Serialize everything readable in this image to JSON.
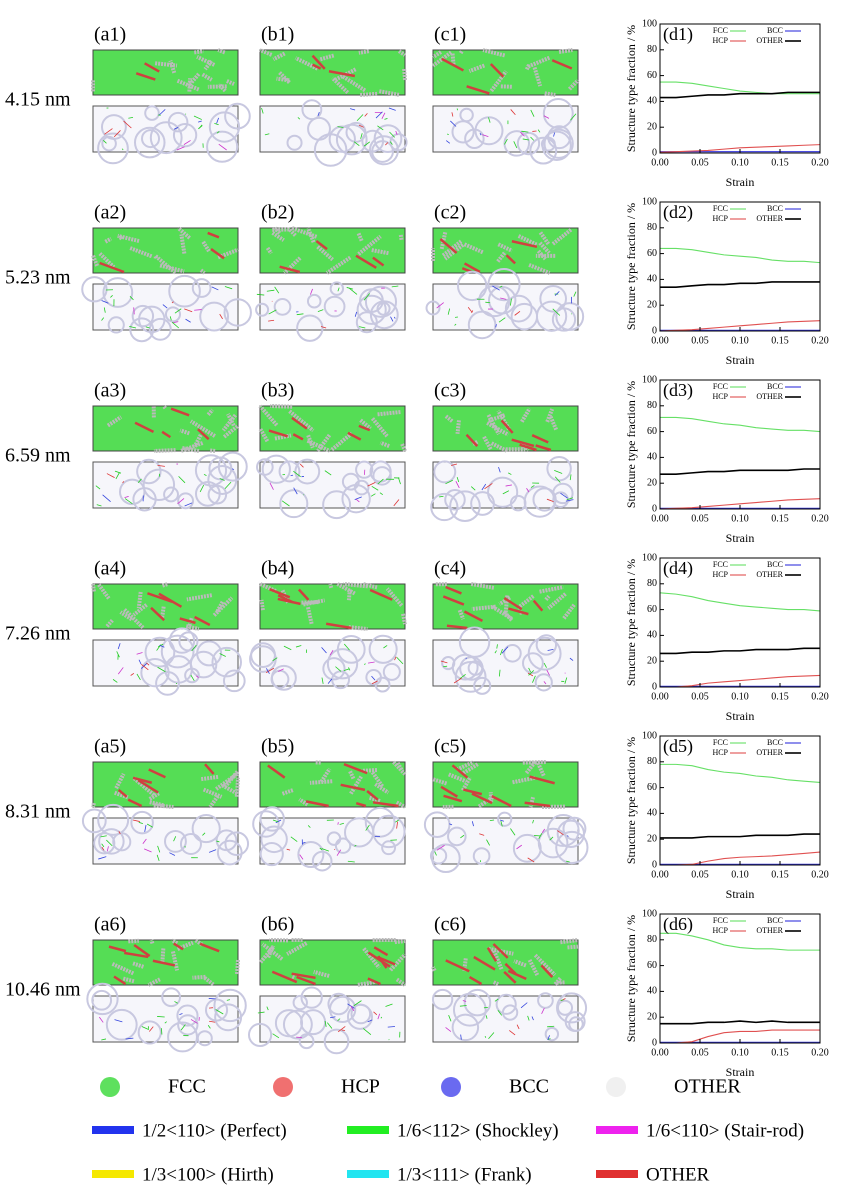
{
  "chart_data": [
    {
      "type": "line",
      "panel_label": "(d1)",
      "xlabel": "Strain",
      "ylabel": "Structure type fraction / %",
      "x": [
        0,
        0.02,
        0.04,
        0.06,
        0.08,
        0.1,
        0.12,
        0.14,
        0.16,
        0.18,
        0.2
      ],
      "series": [
        {
          "name": "FCC",
          "color": "#66e066",
          "values": [
            55,
            55,
            54,
            52,
            50,
            48,
            47,
            46,
            46,
            46,
            46
          ]
        },
        {
          "name": "BCC",
          "color": "#3333dd",
          "values": [
            1,
            1,
            1,
            1,
            1,
            1,
            1,
            1,
            1,
            1,
            1
          ]
        },
        {
          "name": "HCP",
          "color": "#e05050",
          "values": [
            0.5,
            1,
            1.5,
            2,
            3,
            4,
            4.5,
            5,
            5.5,
            6,
            6.5
          ]
        },
        {
          "name": "OTHER",
          "color": "#000000",
          "values": [
            43,
            43,
            44,
            45,
            45,
            46,
            46,
            46,
            47,
            47,
            47
          ]
        }
      ],
      "xlim": [
        0,
        0.2
      ],
      "ylim": [
        0,
        100
      ],
      "xticks": [
        {
          "value": 0,
          "label": "0.00"
        },
        {
          "value": 0.05,
          "label": "0.05"
        },
        {
          "value": 0.1,
          "label": "0.10"
        },
        {
          "value": 0.15,
          "label": "0.15"
        },
        {
          "value": 0.2,
          "label": "0.20"
        }
      ],
      "yticks": [
        0,
        20,
        40,
        60,
        80,
        100
      ]
    },
    {
      "type": "line",
      "panel_label": "(d2)",
      "xlabel": "Strain",
      "ylabel": "Structure type fraction / %",
      "x": [
        0,
        0.02,
        0.04,
        0.06,
        0.08,
        0.1,
        0.12,
        0.14,
        0.16,
        0.18,
        0.2
      ],
      "series": [
        {
          "name": "FCC",
          "color": "#66e066",
          "values": [
            64,
            64,
            63,
            61,
            59,
            58,
            57,
            55,
            54,
            54,
            53
          ]
        },
        {
          "name": "BCC",
          "color": "#3333dd",
          "values": [
            0.5,
            0.5,
            0.5,
            0.5,
            0.5,
            0.5,
            0.5,
            0.5,
            0.5,
            0.5,
            0.5
          ]
        },
        {
          "name": "HCP",
          "color": "#e05050",
          "values": [
            0,
            0.5,
            1,
            2,
            3,
            4,
            5,
            6,
            7,
            7.5,
            8
          ]
        },
        {
          "name": "OTHER",
          "color": "#000000",
          "values": [
            34,
            34,
            35,
            36,
            36,
            37,
            37,
            38,
            38,
            38,
            38
          ]
        }
      ],
      "xlim": [
        0,
        0.2
      ],
      "ylim": [
        0,
        100
      ],
      "xticks": [
        {
          "value": 0,
          "label": "0.00"
        },
        {
          "value": 0.05,
          "label": "0.05"
        },
        {
          "value": 0.1,
          "label": "0.10"
        },
        {
          "value": 0.15,
          "label": "0.15"
        },
        {
          "value": 0.2,
          "label": "0.20"
        }
      ],
      "yticks": [
        0,
        20,
        40,
        60,
        80,
        100
      ]
    },
    {
      "type": "line",
      "panel_label": "(d3)",
      "xlabel": "Strain",
      "ylabel": "Structure type fraction / %",
      "x": [
        0,
        0.02,
        0.04,
        0.06,
        0.08,
        0.1,
        0.12,
        0.14,
        0.16,
        0.18,
        0.2
      ],
      "series": [
        {
          "name": "FCC",
          "color": "#66e066",
          "values": [
            71,
            71,
            70,
            68,
            66,
            65,
            63,
            62,
            61,
            61,
            60
          ]
        },
        {
          "name": "BCC",
          "color": "#3333dd",
          "values": [
            0.5,
            0.5,
            0.5,
            0.5,
            0.5,
            0.5,
            0.5,
            0.5,
            0.5,
            0.5,
            0.5
          ]
        },
        {
          "name": "HCP",
          "color": "#e05050",
          "values": [
            0,
            0.5,
            1,
            2,
            3,
            4,
            5,
            6,
            7,
            7.5,
            8
          ]
        },
        {
          "name": "OTHER",
          "color": "#000000",
          "values": [
            27,
            27,
            28,
            29,
            29,
            30,
            30,
            30,
            30,
            31,
            31
          ]
        }
      ],
      "xlim": [
        0,
        0.2
      ],
      "ylim": [
        0,
        100
      ],
      "xticks": [
        {
          "value": 0,
          "label": "0.00"
        },
        {
          "value": 0.05,
          "label": "0.05"
        },
        {
          "value": 0.1,
          "label": "0.10"
        },
        {
          "value": 0.15,
          "label": "0.15"
        },
        {
          "value": 0.2,
          "label": "0.20"
        }
      ],
      "yticks": [
        0,
        20,
        40,
        60,
        80,
        100
      ]
    },
    {
      "type": "line",
      "panel_label": "(d4)",
      "xlabel": "Strain",
      "ylabel": "Structure type fraction / %",
      "x": [
        0,
        0.02,
        0.04,
        0.06,
        0.08,
        0.1,
        0.12,
        0.14,
        0.16,
        0.18,
        0.2
      ],
      "series": [
        {
          "name": "FCC",
          "color": "#66e066",
          "values": [
            73,
            72,
            70,
            67,
            65,
            63,
            62,
            61,
            60,
            60,
            59
          ]
        },
        {
          "name": "BCC",
          "color": "#3333dd",
          "values": [
            0.5,
            0.5,
            0.5,
            0.5,
            0.5,
            0.5,
            0.5,
            0.5,
            0.5,
            0.5,
            0.5
          ]
        },
        {
          "name": "HCP",
          "color": "#e05050",
          "values": [
            0,
            0,
            1,
            3,
            4,
            5,
            6,
            7,
            8,
            8.5,
            9
          ]
        },
        {
          "name": "OTHER",
          "color": "#000000",
          "values": [
            26,
            26,
            27,
            27,
            28,
            28,
            29,
            29,
            29,
            30,
            30
          ]
        }
      ],
      "xlim": [
        0,
        0.2
      ],
      "ylim": [
        0,
        100
      ],
      "xticks": [
        {
          "value": 0,
          "label": "0.00"
        },
        {
          "value": 0.05,
          "label": "0.05"
        },
        {
          "value": 0.1,
          "label": "0.10"
        },
        {
          "value": 0.15,
          "label": "0.15"
        },
        {
          "value": 0.2,
          "label": "0.20"
        }
      ],
      "yticks": [
        0,
        20,
        40,
        60,
        80,
        100
      ]
    },
    {
      "type": "line",
      "panel_label": "(d5)",
      "xlabel": "Strain",
      "ylabel": "Structure type fraction / %",
      "x": [
        0,
        0.02,
        0.04,
        0.06,
        0.08,
        0.1,
        0.12,
        0.14,
        0.16,
        0.18,
        0.2
      ],
      "series": [
        {
          "name": "FCC",
          "color": "#66e066",
          "values": [
            78,
            78,
            77,
            74,
            72,
            71,
            69,
            68,
            66,
            65,
            64
          ]
        },
        {
          "name": "BCC",
          "color": "#3333dd",
          "values": [
            0.5,
            0.5,
            0.5,
            0.5,
            0.5,
            0.5,
            0.5,
            0.5,
            0.5,
            0.5,
            0.5
          ]
        },
        {
          "name": "HCP",
          "color": "#e05050",
          "values": [
            0,
            0,
            0.5,
            3,
            5,
            6,
            6.5,
            7,
            8,
            9,
            10
          ]
        },
        {
          "name": "OTHER",
          "color": "#000000",
          "values": [
            21,
            21,
            21,
            22,
            22,
            22,
            23,
            23,
            23,
            24,
            24
          ]
        }
      ],
      "xlim": [
        0,
        0.2
      ],
      "ylim": [
        0,
        100
      ],
      "xticks": [
        {
          "value": 0,
          "label": "0.00"
        },
        {
          "value": 0.05,
          "label": "0.05"
        },
        {
          "value": 0.1,
          "label": "0.10"
        },
        {
          "value": 0.15,
          "label": "0.15"
        },
        {
          "value": 0.2,
          "label": "0.20"
        }
      ],
      "yticks": [
        0,
        20,
        40,
        60,
        80,
        100
      ]
    },
    {
      "type": "line",
      "panel_label": "(d6)",
      "xlabel": "Strain",
      "ylabel": "Structure type fraction / %",
      "x": [
        0,
        0.02,
        0.04,
        0.06,
        0.08,
        0.1,
        0.12,
        0.14,
        0.16,
        0.18,
        0.2
      ],
      "series": [
        {
          "name": "FCC",
          "color": "#66e066",
          "values": [
            85,
            85,
            83,
            80,
            76,
            74,
            73,
            73,
            72,
            72,
            72
          ]
        },
        {
          "name": "BCC",
          "color": "#3333dd",
          "values": [
            0.5,
            0.5,
            0.5,
            0.5,
            0.5,
            0.5,
            0.5,
            0.5,
            0.5,
            0.5,
            0.5
          ]
        },
        {
          "name": "HCP",
          "color": "#e05050",
          "values": [
            0,
            0,
            1,
            5,
            8,
            9,
            9,
            10,
            10,
            10,
            10
          ]
        },
        {
          "name": "OTHER",
          "color": "#000000",
          "values": [
            15,
            15,
            15,
            16,
            16,
            17,
            16,
            17,
            16,
            16,
            16
          ]
        }
      ],
      "xlim": [
        0,
        0.2
      ],
      "ylim": [
        0,
        100
      ],
      "xticks": [
        {
          "value": 0,
          "label": "0.00"
        },
        {
          "value": 0.05,
          "label": "0.05"
        },
        {
          "value": 0.1,
          "label": "0.10"
        },
        {
          "value": 0.15,
          "label": "0.15"
        },
        {
          "value": 0.2,
          "label": "0.20"
        }
      ],
      "yticks": [
        0,
        20,
        40,
        60,
        80,
        100
      ]
    }
  ],
  "rows": [
    {
      "size": "4.15 nm",
      "panels": [
        "(a1)",
        "(b1)",
        "(c1)"
      ]
    },
    {
      "size": "5.23 nm",
      "panels": [
        "(a2)",
        "(b2)",
        "(c2)"
      ]
    },
    {
      "size": "6.59 nm",
      "panels": [
        "(a3)",
        "(b3)",
        "(c3)"
      ]
    },
    {
      "size": "7.26 nm",
      "panels": [
        "(a4)",
        "(b4)",
        "(c4)"
      ]
    },
    {
      "size": "8.31 nm",
      "panels": [
        "(a5)",
        "(b5)",
        "(c5)"
      ]
    },
    {
      "size": "10.46 nm",
      "panels": [
        "(a6)",
        "(b6)",
        "(c6)"
      ]
    }
  ],
  "structure_legend": [
    {
      "name": "FCC",
      "color": "#5ee05e"
    },
    {
      "name": "HCP",
      "color": "#f07070"
    },
    {
      "name": "BCC",
      "color": "#6a6af0"
    },
    {
      "name": "OTHER",
      "color": "#f0f0f0"
    }
  ],
  "dislocation_legend": [
    {
      "name": "1/2<110> (Perfect)",
      "color": "#2233ee"
    },
    {
      "name": "1/6<112> (Shockley)",
      "color": "#22ee22"
    },
    {
      "name": "1/6<110> (Stair-rod)",
      "color": "#ee22ee"
    },
    {
      "name": "1/3<100> (Hirth)",
      "color": "#f5e800"
    },
    {
      "name": "1/3<111> (Frank)",
      "color": "#22e5f0"
    },
    {
      "name": "OTHER",
      "color": "#e03030"
    }
  ]
}
